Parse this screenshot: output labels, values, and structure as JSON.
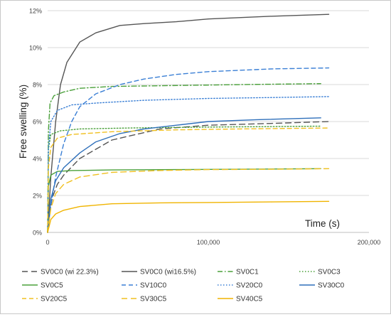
{
  "chart_data": {
    "type": "line",
    "xlabel": "Time (s)",
    "ylabel": "Free swelling (%)",
    "xlim": [
      0,
      200000
    ],
    "ylim": [
      0,
      12
    ],
    "x_ticks": [
      0,
      100000,
      200000
    ],
    "x_tick_labels": [
      "0",
      "100,000",
      "200,000"
    ],
    "y_ticks": [
      0,
      2,
      4,
      6,
      8,
      10,
      12
    ],
    "y_tick_labels": [
      "0%",
      "2%",
      "4%",
      "6%",
      "8%",
      "10%",
      "12%"
    ],
    "grid": "horizontal",
    "legend_position": "bottom",
    "series": [
      {
        "name": "SV0C0 (wi 22.3%)",
        "color": "#555555",
        "dash": "longdash",
        "x": [
          0,
          1000,
          3000,
          6000,
          10000,
          20000,
          40000,
          70000,
          100000,
          140000,
          175000
        ],
        "y": [
          0,
          1.0,
          1.9,
          2.6,
          3.1,
          4.0,
          5.0,
          5.6,
          5.8,
          5.9,
          6.0
        ]
      },
      {
        "name": "SV0C0 (wi16.5%)",
        "color": "#555555",
        "dash": "solid",
        "x": [
          0,
          2000,
          5000,
          8000,
          12000,
          20000,
          30000,
          45000,
          60000,
          80000,
          100000,
          140000,
          175000
        ],
        "y": [
          0,
          3.0,
          6.0,
          8.0,
          9.2,
          10.3,
          10.8,
          11.2,
          11.3,
          11.4,
          11.55,
          11.7,
          11.8
        ]
      },
      {
        "name": "SV0C1",
        "color": "#4aa03a",
        "dash": "dashdot",
        "x": [
          0,
          500,
          1500,
          4000,
          10000,
          20000,
          40000,
          80000,
          120000,
          170000
        ],
        "y": [
          0,
          5.5,
          7.0,
          7.4,
          7.6,
          7.8,
          7.9,
          7.95,
          8.0,
          8.05
        ]
      },
      {
        "name": "SV0C3",
        "color": "#4aa03a",
        "dash": "dotted",
        "x": [
          0,
          500,
          2000,
          8000,
          20000,
          50000,
          100000,
          170000
        ],
        "y": [
          0,
          4.5,
          5.3,
          5.5,
          5.6,
          5.65,
          5.7,
          5.75
        ]
      },
      {
        "name": "SV0C5",
        "color": "#4aa03a",
        "dash": "solid",
        "x": [
          0,
          500,
          2000,
          6000,
          15000,
          40000,
          80000,
          120000,
          170000
        ],
        "y": [
          0,
          2.5,
          3.1,
          3.3,
          3.35,
          3.38,
          3.4,
          3.42,
          3.45
        ]
      },
      {
        "name": "SV10C0",
        "color": "#3a7fd5",
        "dash": "dashed",
        "x": [
          0,
          2000,
          5000,
          10000,
          15000,
          20000,
          30000,
          45000,
          60000,
          80000,
          100000,
          140000,
          175000
        ],
        "y": [
          0,
          1.5,
          3.0,
          4.8,
          6.0,
          6.8,
          7.5,
          8.0,
          8.3,
          8.55,
          8.7,
          8.85,
          8.9
        ]
      },
      {
        "name": "SV20C0",
        "color": "#3a7fd5",
        "dash": "dotted",
        "x": [
          0,
          500,
          2000,
          6000,
          15000,
          30000,
          60000,
          100000,
          140000,
          175000
        ],
        "y": [
          0,
          4.5,
          6.0,
          6.6,
          6.9,
          7.0,
          7.15,
          7.25,
          7.3,
          7.35
        ]
      },
      {
        "name": "SV30C0",
        "color": "#2e6fba",
        "dash": "solid",
        "x": [
          0,
          2000,
          5000,
          10000,
          20000,
          30000,
          45000,
          60000,
          80000,
          100000,
          130000,
          170000
        ],
        "y": [
          0,
          1.8,
          2.8,
          3.5,
          4.3,
          4.9,
          5.35,
          5.6,
          5.8,
          6.0,
          6.1,
          6.2
        ]
      },
      {
        "name": "SV20C5",
        "color": "#f0c020",
        "dash": "dashed",
        "x": [
          0,
          500,
          2000,
          6000,
          15000,
          40000,
          80000,
          120000,
          175000
        ],
        "y": [
          0,
          3.5,
          4.6,
          5.1,
          5.3,
          5.45,
          5.55,
          5.6,
          5.65
        ]
      },
      {
        "name": "SV30C5",
        "color": "#f0c020",
        "dash": "longdash",
        "x": [
          0,
          2000,
          5000,
          10000,
          20000,
          40000,
          70000,
          100000,
          140000,
          175000
        ],
        "y": [
          0,
          1.3,
          2.1,
          2.6,
          3.0,
          3.25,
          3.35,
          3.4,
          3.42,
          3.45
        ]
      },
      {
        "name": "SV40C5",
        "color": "#f0b400",
        "dash": "solid",
        "x": [
          0,
          2000,
          5000,
          10000,
          20000,
          40000,
          70000,
          100000,
          140000,
          175000
        ],
        "y": [
          0,
          0.7,
          1.0,
          1.2,
          1.4,
          1.55,
          1.6,
          1.62,
          1.65,
          1.68
        ]
      }
    ]
  }
}
